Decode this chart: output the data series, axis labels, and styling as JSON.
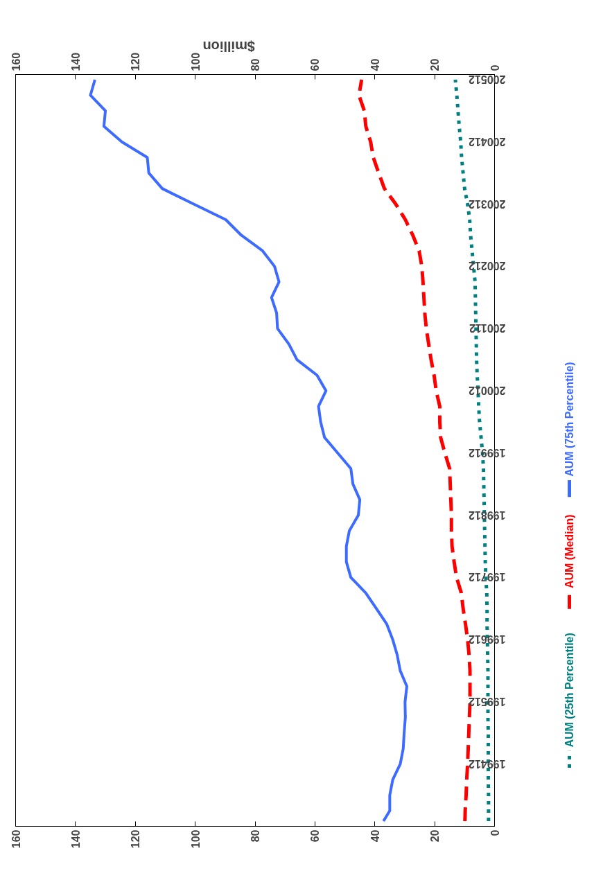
{
  "chart_data": {
    "type": "line",
    "orientation": "horizontal",
    "x2label": "$million",
    "x": [
      "1994-01",
      "1994-03",
      "1994-06",
      "1994-09",
      "1994-12",
      "1995-03",
      "1995-06",
      "1995-09",
      "1995-12",
      "1996-03",
      "1996-06",
      "1996-09",
      "1996-12",
      "1997-03",
      "1997-06",
      "1997-09",
      "1997-12",
      "1998-03",
      "1998-06",
      "1998-09",
      "1998-12",
      "1999-03",
      "1999-06",
      "1999-09",
      "1999-12",
      "2000-03",
      "2000-06",
      "2000-09",
      "2000-12",
      "2001-03",
      "2001-06",
      "2001-09",
      "2001-12",
      "2002-03",
      "2002-06",
      "2002-09",
      "2002-12",
      "2003-03",
      "2003-06",
      "2003-09",
      "2003-12",
      "2004-03",
      "2004-06",
      "2004-09",
      "2004-12",
      "2005-03",
      "2005-06",
      "2005-09",
      "2005-12"
    ],
    "series": [
      {
        "name": "AUM (25th Percentile)",
        "color": "#008080",
        "line_style": "dotted",
        "values": [
          2.0,
          2.0,
          2.0,
          2.1,
          2.1,
          2.1,
          2.1,
          2.2,
          2.2,
          2.2,
          2.2,
          2.3,
          2.4,
          2.5,
          2.5,
          2.6,
          2.9,
          3.1,
          3.2,
          3.3,
          3.4,
          3.5,
          3.6,
          3.7,
          4.0,
          4.5,
          5.0,
          5.3,
          5.5,
          5.8,
          6.0,
          6.1,
          6.2,
          6.3,
          6.4,
          6.5,
          7.0,
          7.5,
          8.0,
          8.3,
          9.0,
          10.0,
          10.5,
          11.0,
          11.3,
          11.8,
          12.2,
          12.6,
          13.1
        ]
      },
      {
        "name": "AUM (Median)",
        "color": "#ff0000",
        "line_style": "dashed",
        "values": [
          9.9,
          9.8,
          9.5,
          9.3,
          9.0,
          8.8,
          8.6,
          8.4,
          8.2,
          8.2,
          8.2,
          8.5,
          9.0,
          9.7,
          10.5,
          11.1,
          12.7,
          13.5,
          14.2,
          14.4,
          14.4,
          14.6,
          14.8,
          15.0,
          16.6,
          18.0,
          18.3,
          18.3,
          19.5,
          20.2,
          21.2,
          22.0,
          22.8,
          23.3,
          23.6,
          23.9,
          24.3,
          25.2,
          27.3,
          29.8,
          33.0,
          36.8,
          38.7,
          40.5,
          41.4,
          43.0,
          43.5,
          45.3,
          44.4
        ]
      },
      {
        "name": "AUM (75th Percentile)",
        "color": "#3d6bff",
        "line_style": "solid",
        "values": [
          37.1,
          35.0,
          35.0,
          34.0,
          31.5,
          30.5,
          30.2,
          29.8,
          29.9,
          29.3,
          31.5,
          32.5,
          34.0,
          36.0,
          39.5,
          43.0,
          48.0,
          49.5,
          49.5,
          48.5,
          45.5,
          45.0,
          47.3,
          48.0,
          52.4,
          56.8,
          58.1,
          58.8,
          56.3,
          59.3,
          66.0,
          68.7,
          72.5,
          72.8,
          74.5,
          72.0,
          73.5,
          77.5,
          84.6,
          89.8,
          100.5,
          111.0,
          115.5,
          116.0,
          124.5,
          130.5,
          130.0,
          135.0,
          133.5
        ]
      }
    ],
    "xlim": [
      160,
      0
    ],
    "xticks": [
      0,
      20,
      40,
      60,
      80,
      100,
      120,
      140,
      160
    ],
    "x2lim": [
      160,
      0
    ],
    "x2ticks": [
      0,
      20,
      40,
      60,
      80,
      100,
      120,
      140,
      160
    ],
    "ylim": [
      "1993-12",
      "2006-01"
    ],
    "yticks": [
      {
        "value": "1994-12",
        "label": "199412"
      },
      {
        "value": "1995-12",
        "label": "199512"
      },
      {
        "value": "1996-12",
        "label": "199612"
      },
      {
        "value": "1997-12",
        "label": "199712"
      },
      {
        "value": "1998-12",
        "label": "199812"
      },
      {
        "value": "1999-12",
        "label": "199912"
      },
      {
        "value": "2000-12",
        "label": "200012"
      },
      {
        "value": "2001-12",
        "label": "200112"
      },
      {
        "value": "2002-12",
        "label": "200212"
      },
      {
        "value": "2003-12",
        "label": "200312"
      },
      {
        "value": "2004-12",
        "label": "200412"
      },
      {
        "value": "2005-12",
        "label": "200512"
      }
    ],
    "grid": false,
    "legend": "right"
  }
}
